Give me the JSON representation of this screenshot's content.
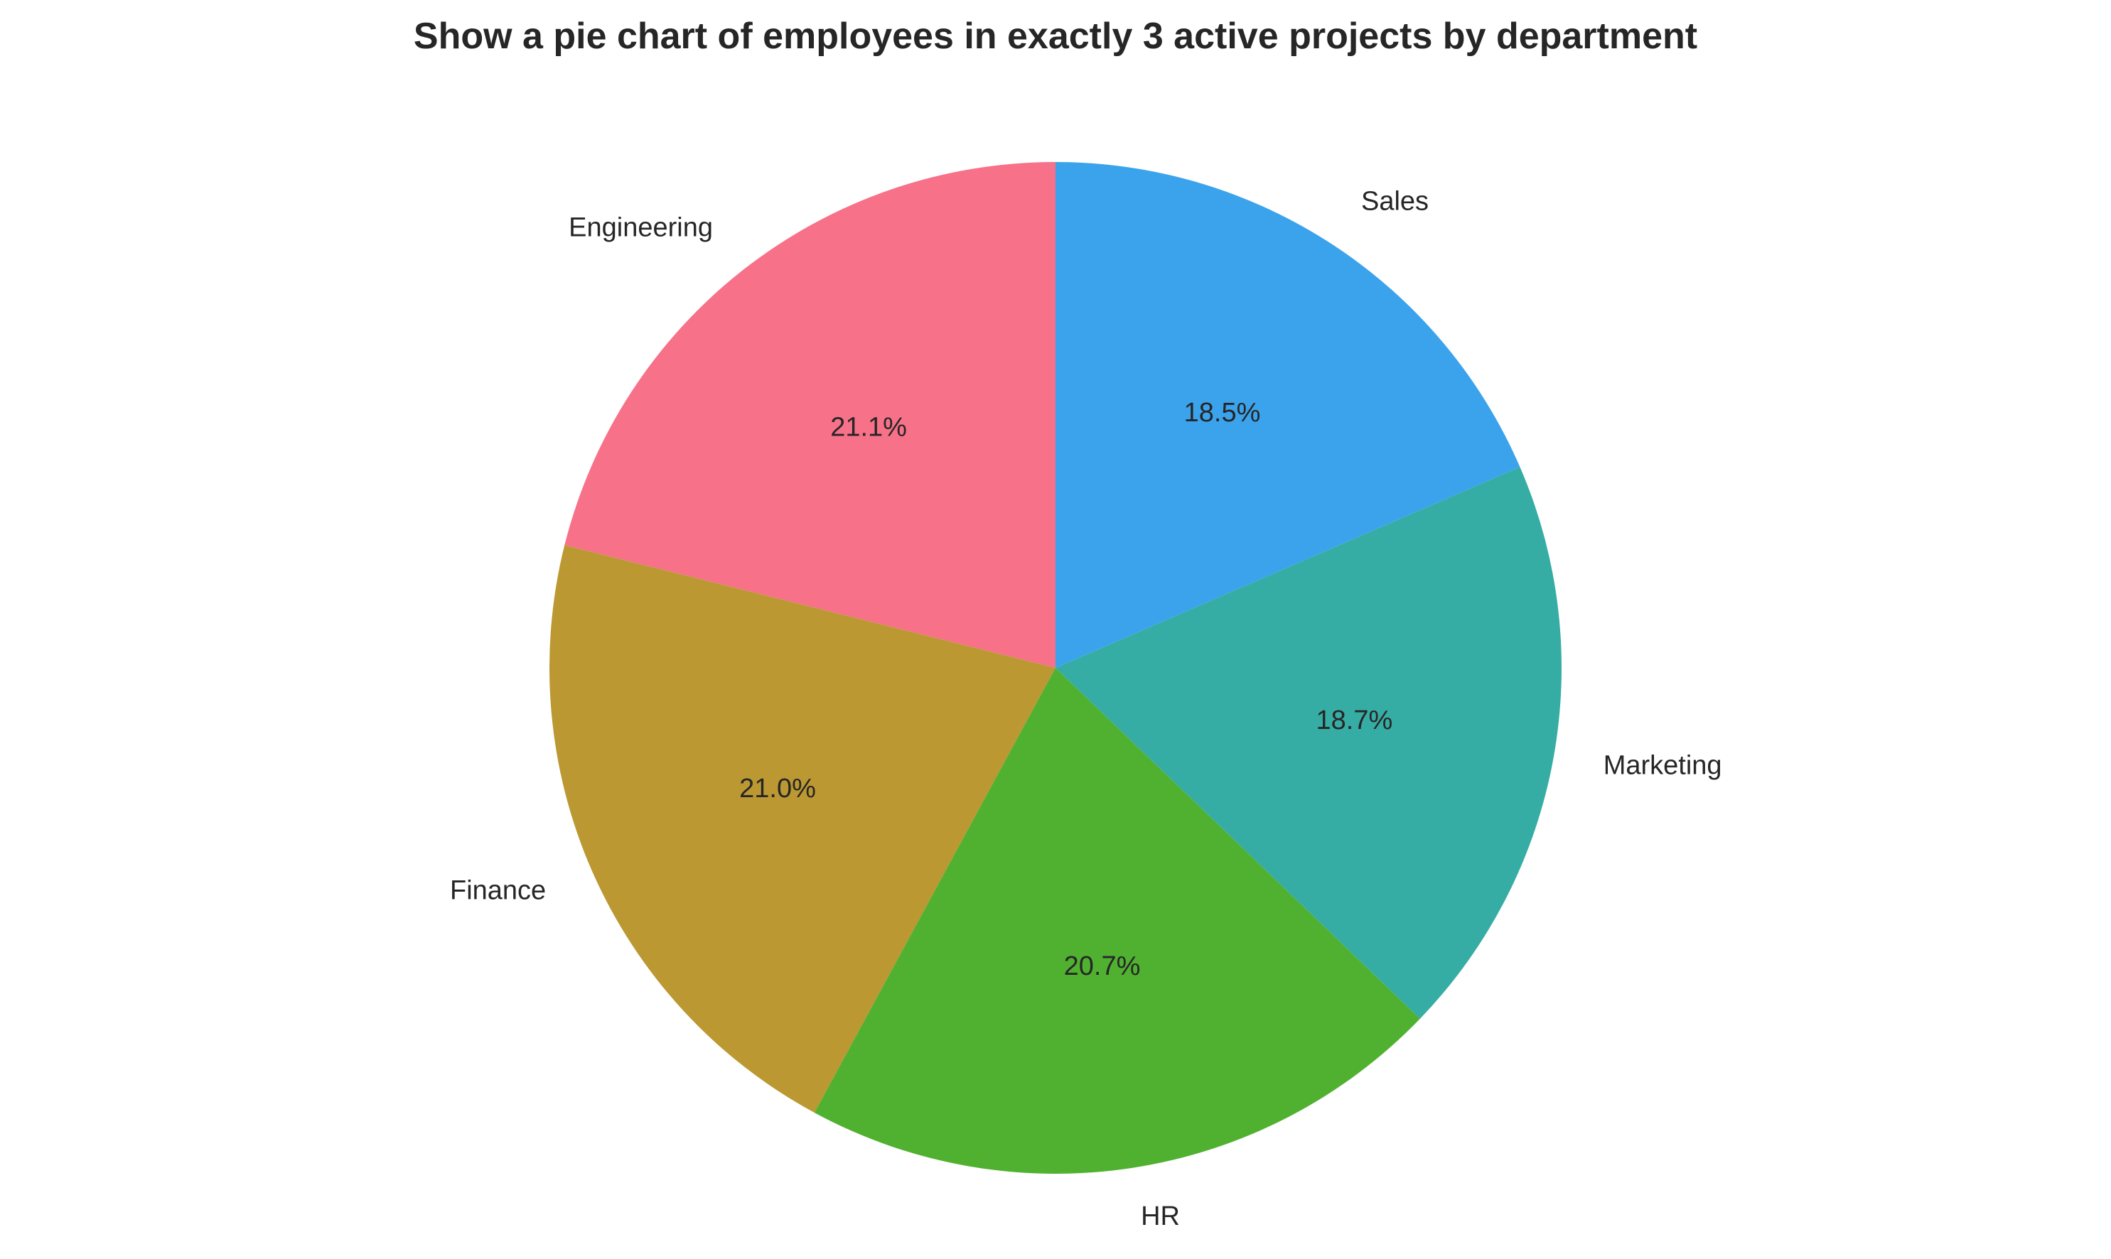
{
  "chart_data": {
    "type": "pie",
    "title": "Show a pie chart of employees in exactly 3 active projects by department",
    "categories": [
      "Engineering",
      "Finance",
      "HR",
      "Marketing",
      "Sales"
    ],
    "values": [
      21.1,
      21.0,
      20.7,
      18.7,
      18.5
    ],
    "percent_labels": [
      "21.1%",
      "21.0%",
      "20.7%",
      "18.7%",
      "18.5%"
    ],
    "colors": [
      "#f77189",
      "#bb9832",
      "#50b131",
      "#36ada4",
      "#3ba3ec"
    ],
    "start_angle_deg": 90,
    "direction": "counterclockwise",
    "legend": "none"
  }
}
